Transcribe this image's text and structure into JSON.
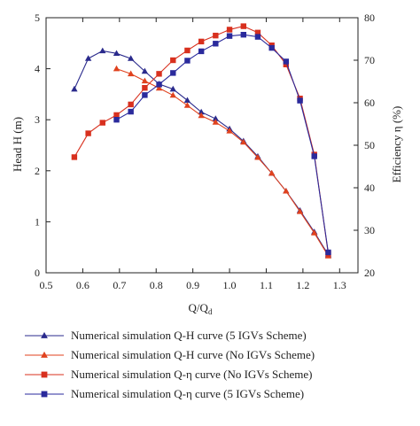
{
  "chart_data": {
    "type": "line",
    "xlabel": "Q/Q",
    "xlabel_sub": "d",
    "ylabel_left": "Head H (m)",
    "ylabel_right": "Efficiency η (%)",
    "xlim": [
      0.5,
      1.35
    ],
    "ylim_left": [
      0,
      5
    ],
    "ylim_right": [
      20,
      80
    ],
    "x_ticks": [
      "0.5",
      "0.6",
      "0.7",
      "0.8",
      "0.9",
      "1.0",
      "1.1",
      "1.2",
      "1.3"
    ],
    "y_left_ticks": [
      "0",
      "1",
      "2",
      "3",
      "4",
      "5"
    ],
    "y_right_ticks": [
      "20",
      "30",
      "40",
      "50",
      "60",
      "70",
      "80"
    ],
    "grid": false,
    "legend_position": "below",
    "series": [
      {
        "name": "Numerical simulation Q-H curve (5 IGVs Scheme)",
        "axis": "left",
        "marker": "triangle",
        "color": "#2a2a8c",
        "x": [
          0.577,
          0.615,
          0.654,
          0.692,
          0.731,
          0.769,
          0.808,
          0.846,
          0.885,
          0.923,
          0.962,
          1.0,
          1.038,
          1.077,
          1.115,
          1.154,
          1.192,
          1.231,
          1.269
        ],
        "y": [
          3.6,
          4.2,
          4.35,
          4.3,
          4.2,
          3.95,
          3.7,
          3.6,
          3.38,
          3.15,
          3.02,
          2.82,
          2.58,
          2.28,
          1.95,
          1.6,
          1.22,
          0.8,
          0.35
        ]
      },
      {
        "name": "Numerical simulation Q-H curve (No IGVs Scheme)",
        "axis": "left",
        "marker": "triangle",
        "color": "#e0421e",
        "x": [
          0.692,
          0.731,
          0.769,
          0.808,
          0.846,
          0.885,
          0.923,
          0.962,
          1.0,
          1.038,
          1.077,
          1.115,
          1.154,
          1.192,
          1.231,
          1.269
        ],
        "y": [
          4.0,
          3.9,
          3.76,
          3.62,
          3.48,
          3.28,
          3.08,
          2.95,
          2.78,
          2.56,
          2.26,
          1.95,
          1.6,
          1.2,
          0.78,
          0.33
        ]
      },
      {
        "name": "Numerical simulation Q-η curve (No IGVs Scheme)",
        "axis": "right",
        "marker": "square",
        "color": "#d8301e",
        "x": [
          0.577,
          0.615,
          0.654,
          0.692,
          0.731,
          0.769,
          0.808,
          0.846,
          0.885,
          0.923,
          0.962,
          1.0,
          1.038,
          1.077,
          1.115,
          1.154,
          1.192,
          1.231,
          1.269
        ],
        "y": [
          47.2,
          52.8,
          55.3,
          57.1,
          59.6,
          63.5,
          66.8,
          70.0,
          72.3,
          74.4,
          75.8,
          77.2,
          78.0,
          76.5,
          73.5,
          69.0,
          61.0,
          47.8,
          24.5
        ]
      },
      {
        "name": "Numerical simulation Q-η curve (5 IGVs Scheme)",
        "axis": "right",
        "marker": "square",
        "color": "#2a2a9c",
        "x": [
          0.692,
          0.731,
          0.769,
          0.808,
          0.846,
          0.885,
          0.923,
          0.962,
          1.0,
          1.038,
          1.077,
          1.115,
          1.154,
          1.192,
          1.231,
          1.269
        ],
        "y": [
          56.0,
          57.9,
          61.8,
          64.3,
          67.0,
          69.9,
          72.1,
          73.9,
          75.7,
          76.0,
          75.5,
          72.9,
          69.7,
          60.5,
          47.4,
          24.8
        ]
      }
    ]
  }
}
